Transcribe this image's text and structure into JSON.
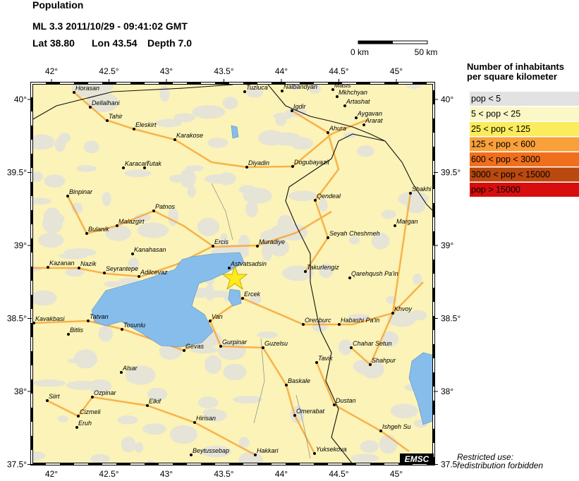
{
  "header": {
    "title": "Population",
    "event": "ML 3.3  2011/10/29 - 09:41:02 GMT",
    "lat": "Lat 38.80",
    "lon": "Lon 43.54",
    "depth": "Depth 7.0"
  },
  "scale": {
    "start": "0 km",
    "end": "50 km"
  },
  "legend": {
    "title_line1": "Number of inhabitants",
    "title_line2": "per square kilometer",
    "items": [
      {
        "label": "pop < 5",
        "color": "#e2e2e2"
      },
      {
        "label": "5 < pop < 25",
        "color": "#fbf7c6"
      },
      {
        "label": "25 < pop < 125",
        "color": "#faec5c"
      },
      {
        "label": "125 < pop < 600",
        "color": "#f9a03a"
      },
      {
        "label": "600 < pop < 3000",
        "color": "#ef6f1d"
      },
      {
        "label": "3000 < pop < 15000",
        "color": "#b9490f"
      },
      {
        "label": "pop > 15000",
        "color": "#d80d0d"
      }
    ]
  },
  "axes": {
    "lon_ticks": [
      {
        "value": 42,
        "label": "42°"
      },
      {
        "value": 42.5,
        "label": "42.5°"
      },
      {
        "value": 43,
        "label": "43°"
      },
      {
        "value": 43.5,
        "label": "43.5°"
      },
      {
        "value": 44,
        "label": "44°"
      },
      {
        "value": 44.5,
        "label": "44.5°"
      },
      {
        "value": 45,
        "label": "45°"
      }
    ],
    "lat_ticks": [
      {
        "value": 40,
        "label": "40°"
      },
      {
        "value": 39.5,
        "label": "39.5°"
      },
      {
        "value": 39,
        "label": "39°"
      },
      {
        "value": 38.5,
        "label": "38.5°"
      },
      {
        "value": 38,
        "label": "38°"
      },
      {
        "value": 37.5,
        "label": "37.5°"
      }
    ]
  },
  "towns": [
    "Horasan",
    "Dellalhani",
    "Tahir",
    "Eleskirt",
    "Karakose",
    "Karacan",
    "Tutak",
    "Binpinar",
    "Patnos",
    "Malazgirt",
    "Bulanik",
    "Kanahasan",
    "Ercis",
    "Muradiye",
    "Kazanan",
    "Nazik",
    "Seyrantepe",
    "Adilcevaz",
    "Astvatsadsin",
    "Ercek",
    "Van",
    "Tatvan",
    "Kavakbasi",
    "Bitlis",
    "Tosunlu",
    "Gevas",
    "Gurpinar",
    "Guzelsu",
    "Alsar",
    "Siirt",
    "Ozpinar",
    "Elkif",
    "Cizmeli",
    "Eruh",
    "Hirisan",
    "Beytussebap",
    "Hakkari",
    "Tuzluca",
    "Nalbandyan",
    "Masis",
    "Mkhchyan",
    "Artashat",
    "Aygavan",
    "Ararat",
    "Igdir",
    "Ahura",
    "Diyadin",
    "Dogubayazit",
    "Qendeal",
    "Shakhi",
    "Margan",
    "Seyah Cheshmeh",
    "Takurlengiz",
    "Qarehqush Pa'in",
    "Khvoy",
    "Orenburc",
    "Habashi Pa'in",
    "Chahar Setun",
    "Shahpur",
    "Tavik",
    "Baskale",
    "Dustan",
    "Omerabat",
    "Ishgeh Su",
    "Yuksekova"
  ],
  "credit": "EMSC",
  "notice_line1": "Restricted use:",
  "notice_line2": "redistribution forbidden"
}
